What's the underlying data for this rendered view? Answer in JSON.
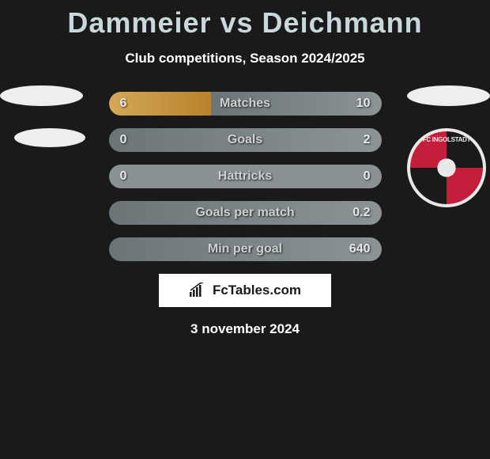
{
  "title": "Dammeier vs Deichmann",
  "subtitle": "Club competitions, Season 2024/2025",
  "date": "3 november 2024",
  "watermark": "FcTables.com",
  "badge_top_text": "FC INGOLSTADT",
  "colors": {
    "background": "#1a1a1a",
    "title": "#c8d8dc",
    "text": "#ffffff",
    "stat_g1_start": "#d4a857",
    "stat_g1_end": "#b8832c",
    "stat_g2_start": "#8b9396",
    "stat_g2_end": "#6b7578",
    "stat_bg_dark": "#555d60",
    "stat_neutral": "#8a9194",
    "logo_bg": "#eeeeee",
    "badge_red": "#c41e3a",
    "badge_black": "#1a1a1a"
  },
  "stats": [
    {
      "label": "Matches",
      "left_value": "6",
      "right_value": "10",
      "left_pct": 37.5,
      "right_pct": 62.5,
      "type": "split",
      "left_color_start": "#d4a857",
      "left_color_end": "#b8832c",
      "right_color_start": "#8b9396",
      "right_color_end": "#6b7578"
    },
    {
      "label": "Goals",
      "left_value": "0",
      "right_value": "2",
      "left_pct": 0,
      "right_pct": 100,
      "type": "split",
      "left_color_start": "#d4a857",
      "left_color_end": "#b8832c",
      "right_color_start": "#8b9396",
      "right_color_end": "#6b7578"
    },
    {
      "label": "Hattricks",
      "left_value": "0",
      "right_value": "0",
      "left_pct": 0,
      "right_pct": 0,
      "type": "neutral",
      "bg_color": "#8a9194"
    },
    {
      "label": "Goals per match",
      "left_value": "",
      "right_value": "0.2",
      "left_pct": 0,
      "right_pct": 100,
      "type": "split",
      "left_color_start": "#d4a857",
      "left_color_end": "#b8832c",
      "right_color_start": "#8b9396",
      "right_color_end": "#6b7578"
    },
    {
      "label": "Min per goal",
      "left_value": "",
      "right_value": "640",
      "left_pct": 0,
      "right_pct": 100,
      "type": "split",
      "left_color_start": "#d4a857",
      "left_color_end": "#b8832c",
      "right_color_start": "#8b9396",
      "right_color_end": "#6b7578"
    }
  ]
}
